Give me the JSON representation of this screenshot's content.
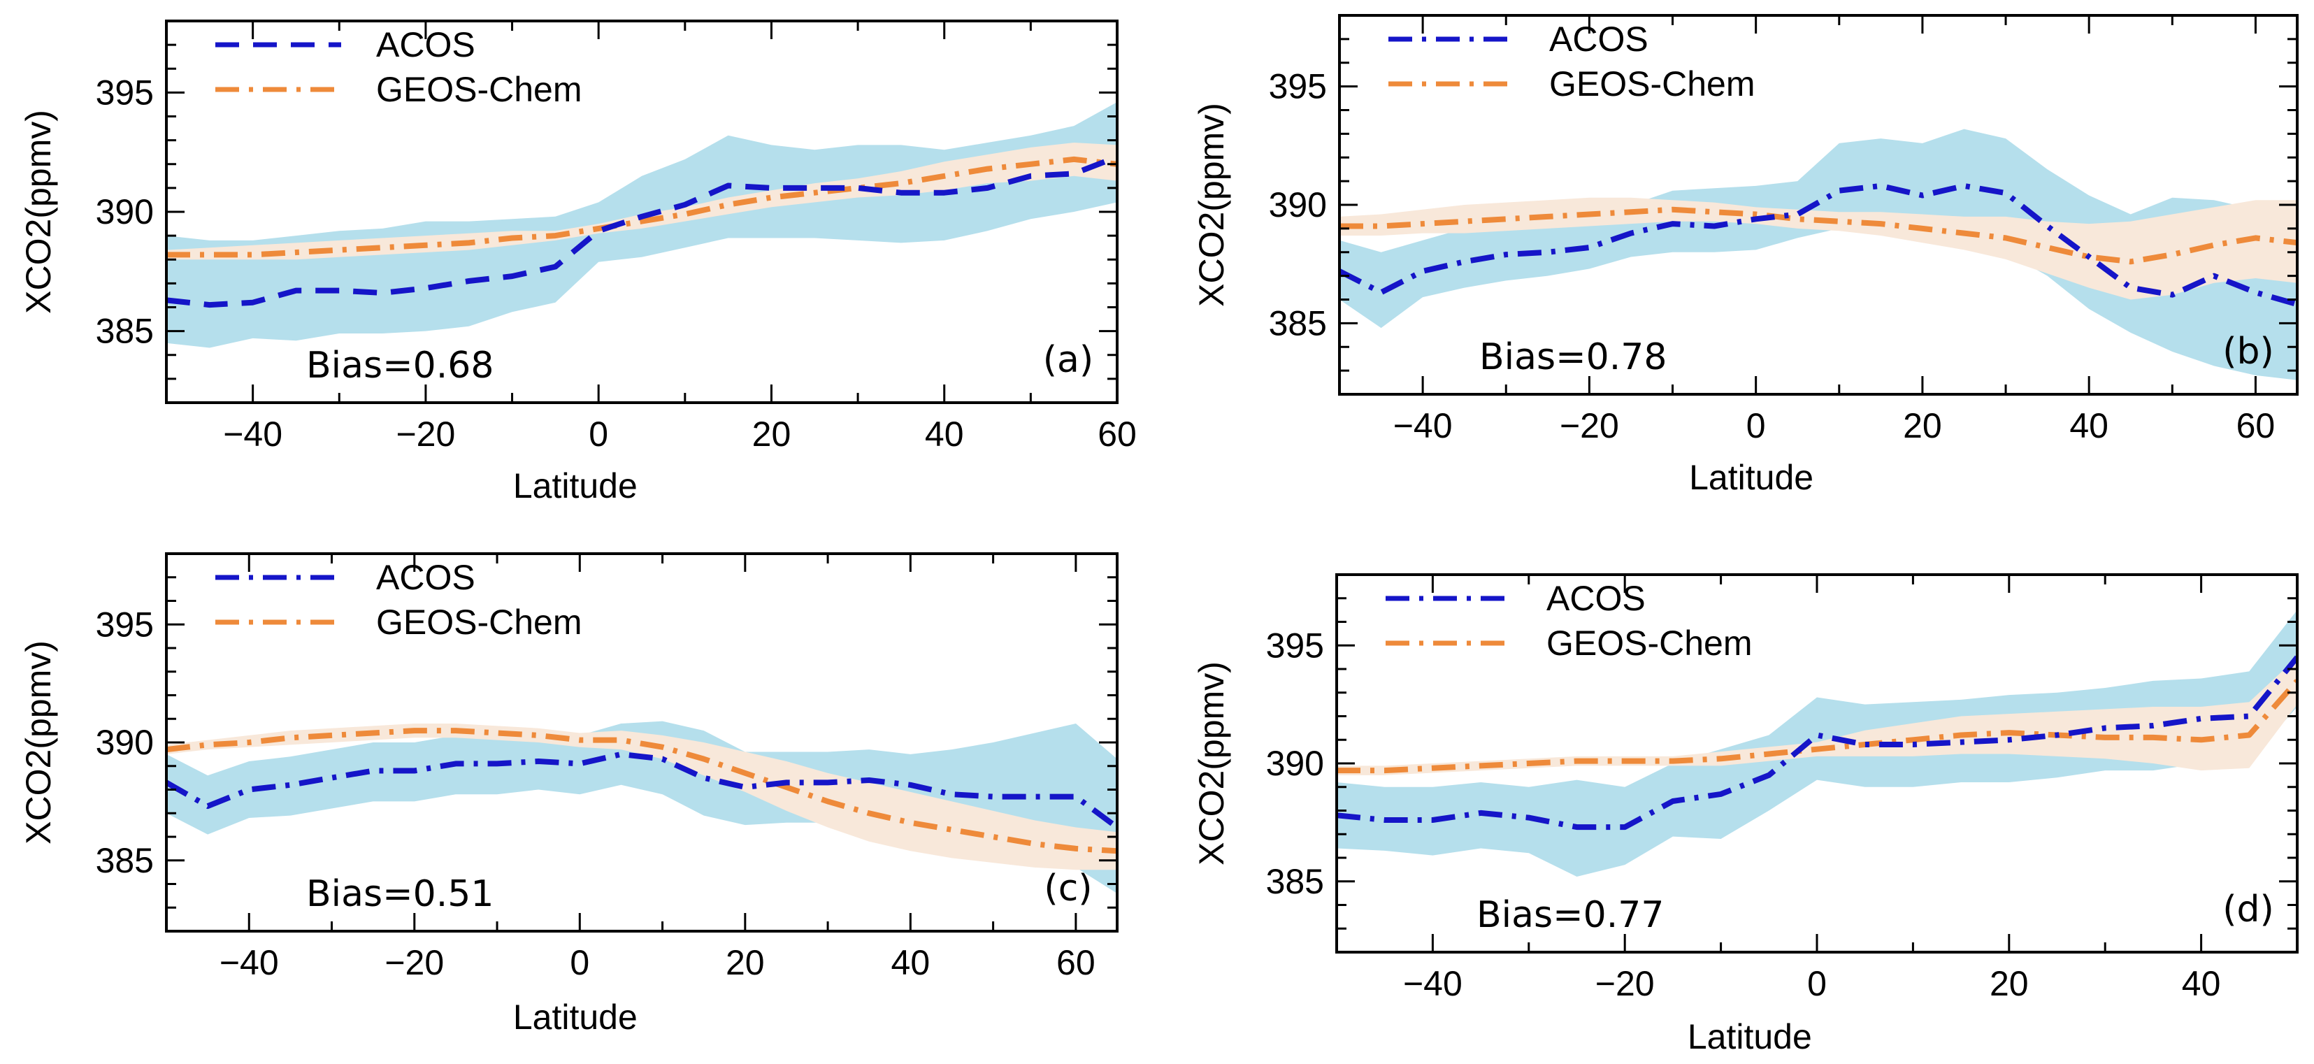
{
  "figure": {
    "colors": {
      "acos": "#1515c8",
      "geos": "#ee8a3a",
      "acos_band": "#b5dfec",
      "geos_band": "#f8e8da",
      "axis": "#000000"
    }
  },
  "chart_data": [
    {
      "type": "line",
      "panel": "(a)",
      "bias": "Bias=0.68",
      "xlabel": "Latitude",
      "ylabel": "XCO2(ppmv)",
      "xlim": [
        -50,
        60
      ],
      "ylim": [
        382,
        398
      ],
      "xticks": [
        -40,
        -20,
        0,
        20,
        40,
        60
      ],
      "yticks": [
        385,
        390,
        395
      ],
      "acos_style": "dashed",
      "legend": [
        "ACOS",
        "GEOS-Chem"
      ],
      "x": [
        -50,
        -45,
        -40,
        -35,
        -30,
        -25,
        -20,
        -15,
        -10,
        -5,
        0,
        5,
        10,
        15,
        20,
        25,
        30,
        35,
        40,
        45,
        50,
        55,
        60
      ],
      "series": [
        {
          "name": "ACOS",
          "values": [
            386.3,
            386.1,
            386.2,
            386.7,
            386.7,
            386.6,
            386.8,
            387.1,
            387.3,
            387.7,
            389.2,
            389.8,
            390.3,
            391.1,
            391.0,
            391.0,
            391.0,
            390.8,
            390.8,
            391.0,
            391.5,
            391.6,
            392.3
          ],
          "upper": [
            389.0,
            388.8,
            388.8,
            389.0,
            389.2,
            389.3,
            389.6,
            389.6,
            389.7,
            389.8,
            390.4,
            391.5,
            392.2,
            393.2,
            392.8,
            392.6,
            392.8,
            392.8,
            392.6,
            392.9,
            393.2,
            393.6,
            394.6
          ],
          "lower": [
            384.5,
            384.3,
            384.7,
            384.6,
            384.9,
            384.9,
            385.0,
            385.2,
            385.8,
            386.2,
            387.9,
            388.1,
            388.5,
            388.9,
            388.9,
            388.9,
            388.8,
            388.7,
            388.8,
            389.2,
            389.7,
            390.0,
            390.4
          ]
        },
        {
          "name": "GEOS-Chem",
          "values": [
            388.2,
            388.2,
            388.2,
            388.3,
            388.4,
            388.5,
            388.6,
            388.7,
            388.9,
            389.0,
            389.3,
            389.6,
            389.9,
            390.3,
            390.6,
            390.8,
            391.0,
            391.2,
            391.5,
            391.8,
            392.0,
            392.2,
            392.0
          ],
          "upper": [
            388.4,
            388.5,
            388.6,
            388.7,
            388.8,
            388.9,
            389.0,
            389.1,
            389.2,
            389.2,
            389.5,
            389.9,
            390.2,
            390.6,
            390.9,
            391.2,
            391.4,
            391.7,
            392.1,
            392.4,
            392.7,
            392.9,
            392.8
          ],
          "lower": [
            388.0,
            388.0,
            388.0,
            388.0,
            388.1,
            388.2,
            388.3,
            388.4,
            388.6,
            388.8,
            389.1,
            389.3,
            389.6,
            389.9,
            390.2,
            390.4,
            390.6,
            390.7,
            390.9,
            391.2,
            391.3,
            391.5,
            391.3
          ]
        }
      ]
    },
    {
      "type": "line",
      "panel": "(b)",
      "bias": "Bias=0.78",
      "xlabel": "Latitude",
      "ylabel": "XCO2(ppmv)",
      "xlim": [
        -50,
        65
      ],
      "ylim": [
        382,
        398
      ],
      "xticks": [
        -40,
        -20,
        0,
        20,
        40,
        60
      ],
      "yticks": [
        385,
        390,
        395
      ],
      "acos_style": "dashdot",
      "legend": [
        "ACOS",
        "GEOS-Chem"
      ],
      "x": [
        -50,
        -45,
        -40,
        -35,
        -30,
        -25,
        -20,
        -15,
        -10,
        -5,
        0,
        5,
        10,
        15,
        20,
        25,
        30,
        35,
        40,
        45,
        50,
        55,
        60,
        65
      ],
      "series": [
        {
          "name": "ACOS",
          "values": [
            387.2,
            386.3,
            387.2,
            387.6,
            387.9,
            388.0,
            388.2,
            388.8,
            389.2,
            389.1,
            389.4,
            389.6,
            390.6,
            390.8,
            390.4,
            390.8,
            390.5,
            389.1,
            387.8,
            386.5,
            386.2,
            387.0,
            386.3,
            385.8
          ],
          "upper": [
            388.5,
            388.0,
            388.5,
            389.0,
            389.2,
            389.5,
            389.6,
            390.0,
            390.6,
            390.7,
            390.8,
            391.0,
            392.6,
            392.8,
            392.6,
            393.2,
            392.8,
            391.5,
            390.4,
            389.6,
            390.3,
            390.2,
            389.8,
            389.6
          ],
          "lower": [
            386.0,
            384.8,
            386.1,
            386.5,
            386.8,
            387.0,
            387.3,
            387.8,
            388.0,
            388.0,
            388.1,
            388.6,
            389.0,
            388.8,
            388.5,
            388.2,
            388.0,
            387.0,
            385.6,
            384.6,
            383.8,
            383.2,
            382.8,
            382.6
          ]
        },
        {
          "name": "GEOS-Chem",
          "values": [
            389.1,
            389.1,
            389.2,
            389.3,
            389.4,
            389.5,
            389.6,
            389.7,
            389.8,
            389.7,
            389.6,
            389.4,
            389.3,
            389.2,
            389.0,
            388.8,
            388.6,
            388.2,
            387.8,
            387.6,
            387.9,
            388.3,
            388.6,
            388.4
          ],
          "upper": [
            389.5,
            389.6,
            389.8,
            390.0,
            390.1,
            390.2,
            390.3,
            390.3,
            390.2,
            390.1,
            389.9,
            389.8,
            389.7,
            389.7,
            389.6,
            389.5,
            389.5,
            389.3,
            389.2,
            389.3,
            389.6,
            389.9,
            390.2,
            390.2
          ],
          "lower": [
            388.7,
            388.7,
            388.8,
            388.8,
            388.9,
            389.0,
            389.1,
            389.2,
            389.3,
            389.3,
            389.2,
            389.0,
            388.9,
            388.7,
            388.4,
            388.1,
            387.7,
            387.1,
            386.5,
            386.0,
            386.2,
            386.7,
            386.9,
            386.7
          ]
        }
      ]
    },
    {
      "type": "line",
      "panel": "(c)",
      "bias": "Bias=0.51",
      "xlabel": "Latitude",
      "ylabel": "XCO2(ppmv)",
      "xlim": [
        -50,
        65
      ],
      "ylim": [
        382,
        398
      ],
      "xticks": [
        -40,
        -20,
        0,
        20,
        40,
        60
      ],
      "yticks": [
        385,
        390,
        395
      ],
      "acos_style": "dashdot",
      "legend": [
        "ACOS",
        "GEOS-Chem"
      ],
      "x": [
        -50,
        -45,
        -40,
        -35,
        -30,
        -25,
        -20,
        -15,
        -10,
        -5,
        0,
        5,
        10,
        15,
        20,
        25,
        30,
        35,
        40,
        45,
        50,
        55,
        60,
        65
      ],
      "series": [
        {
          "name": "ACOS",
          "values": [
            388.3,
            387.3,
            388.0,
            388.2,
            388.5,
            388.8,
            388.8,
            389.1,
            389.1,
            389.2,
            389.1,
            389.5,
            389.3,
            388.5,
            388.1,
            388.3,
            388.3,
            388.4,
            388.2,
            387.8,
            387.7,
            387.7,
            387.7,
            386.4
          ],
          "upper": [
            389.5,
            388.6,
            389.2,
            389.4,
            389.7,
            390.0,
            390.0,
            390.3,
            390.3,
            390.4,
            390.3,
            390.8,
            390.9,
            390.5,
            389.6,
            389.6,
            389.6,
            389.7,
            389.5,
            389.7,
            390.0,
            390.4,
            390.8,
            389.3
          ],
          "lower": [
            387.0,
            386.1,
            386.8,
            386.9,
            387.2,
            387.5,
            387.5,
            387.8,
            387.8,
            388.0,
            387.8,
            388.2,
            387.8,
            386.9,
            386.5,
            386.6,
            386.6,
            386.6,
            386.3,
            385.9,
            385.4,
            385.1,
            384.7,
            383.6
          ]
        },
        {
          "name": "GEOS-Chem",
          "values": [
            389.7,
            389.9,
            390.0,
            390.2,
            390.3,
            390.4,
            390.5,
            390.5,
            390.4,
            390.3,
            390.1,
            390.1,
            389.8,
            389.3,
            388.7,
            388.1,
            387.5,
            387.0,
            386.6,
            386.3,
            386.0,
            385.7,
            385.5,
            385.4
          ],
          "upper": [
            389.9,
            390.1,
            390.3,
            390.5,
            390.6,
            390.7,
            390.8,
            390.8,
            390.7,
            390.6,
            390.4,
            390.5,
            390.3,
            390.0,
            389.6,
            389.2,
            388.7,
            388.3,
            387.9,
            387.5,
            387.1,
            386.7,
            386.4,
            386.2
          ],
          "lower": [
            389.5,
            389.7,
            389.8,
            389.9,
            390.0,
            390.1,
            390.2,
            390.2,
            390.1,
            390.0,
            389.8,
            389.7,
            389.3,
            388.6,
            387.9,
            387.1,
            386.4,
            385.8,
            385.4,
            385.1,
            384.9,
            384.7,
            384.6,
            384.6
          ]
        }
      ]
    },
    {
      "type": "line",
      "panel": "(d)",
      "bias": "Bias=0.77",
      "xlabel": "Latitude",
      "ylabel": "XCO2(ppmv)",
      "xlim": [
        -50,
        50
      ],
      "ylim": [
        382,
        398
      ],
      "xticks": [
        -40,
        -20,
        0,
        20,
        40
      ],
      "yticks": [
        385,
        390,
        395
      ],
      "acos_style": "dashdot",
      "legend": [
        "ACOS",
        "GEOS-Chem"
      ],
      "x": [
        -50,
        -45,
        -40,
        -35,
        -30,
        -25,
        -20,
        -15,
        -10,
        -5,
        0,
        5,
        10,
        15,
        20,
        25,
        30,
        35,
        40,
        45,
        50
      ],
      "series": [
        {
          "name": "ACOS",
          "values": [
            387.8,
            387.6,
            387.6,
            387.9,
            387.7,
            387.3,
            387.3,
            388.4,
            388.7,
            389.5,
            391.2,
            390.8,
            390.8,
            390.9,
            391.0,
            391.2,
            391.5,
            391.6,
            391.9,
            392.0,
            394.5
          ],
          "upper": [
            389.2,
            389.0,
            389.0,
            389.2,
            389.0,
            389.3,
            389.0,
            390.0,
            390.6,
            391.2,
            392.8,
            392.5,
            392.6,
            392.7,
            392.9,
            393.0,
            393.2,
            393.5,
            393.6,
            393.9,
            396.5
          ],
          "lower": [
            386.4,
            386.3,
            386.1,
            386.4,
            386.2,
            385.2,
            385.7,
            386.9,
            386.8,
            388.0,
            389.3,
            389.0,
            389.0,
            389.2,
            389.2,
            389.4,
            389.7,
            389.7,
            390.0,
            390.1,
            392.4
          ]
        },
        {
          "name": "GEOS-Chem",
          "values": [
            389.7,
            389.7,
            389.8,
            389.9,
            390.0,
            390.1,
            390.1,
            390.1,
            390.2,
            390.4,
            390.6,
            390.8,
            391.0,
            391.2,
            391.3,
            391.2,
            391.1,
            391.1,
            391.0,
            391.2,
            393.5
          ],
          "upper": [
            389.9,
            389.9,
            390.0,
            390.1,
            390.2,
            390.3,
            390.3,
            390.3,
            390.5,
            390.7,
            390.9,
            391.4,
            391.7,
            392.0,
            392.1,
            392.2,
            392.3,
            392.4,
            392.4,
            392.6,
            394.5
          ],
          "lower": [
            389.5,
            389.5,
            389.6,
            389.7,
            389.8,
            389.9,
            389.9,
            389.9,
            389.9,
            390.1,
            390.3,
            390.3,
            390.3,
            390.4,
            390.4,
            390.3,
            390.2,
            390.0,
            389.7,
            389.8,
            392.5
          ]
        }
      ]
    }
  ]
}
